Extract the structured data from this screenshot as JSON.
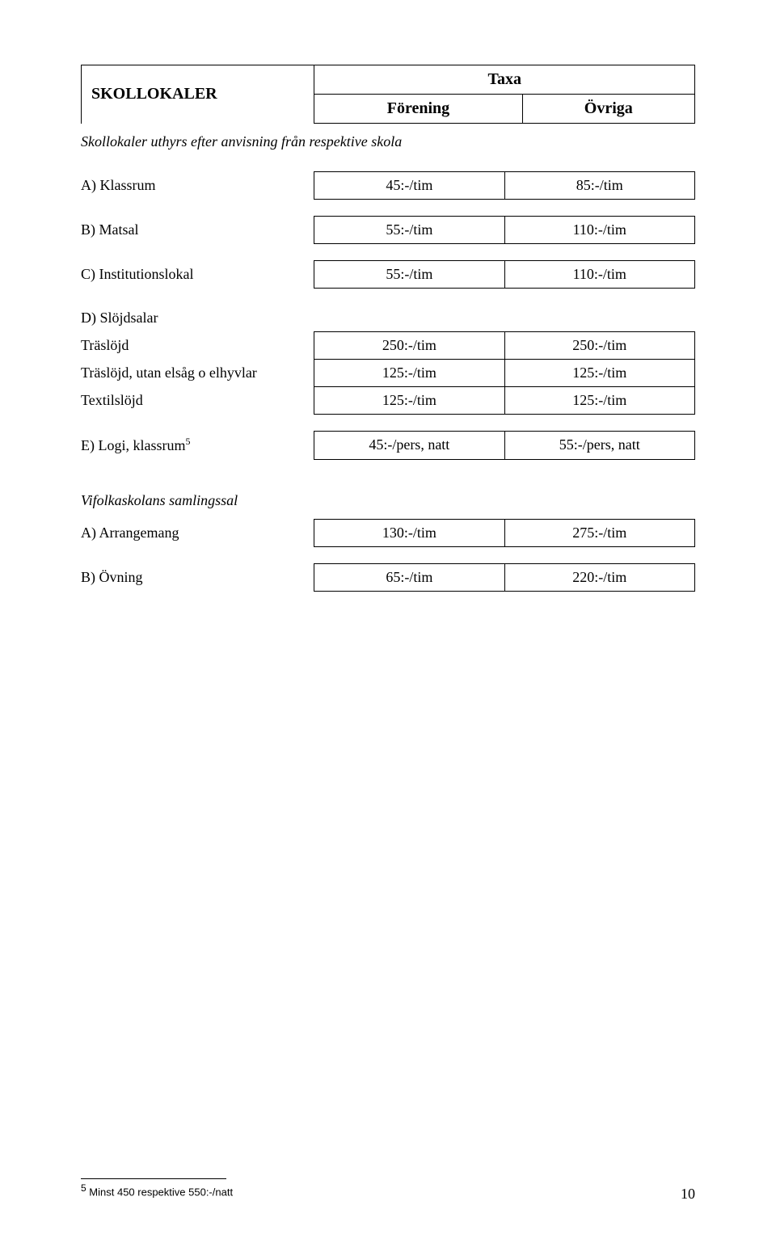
{
  "header": {
    "title": "SKOLLOKALER",
    "taxa": "Taxa",
    "forening": "Förening",
    "ovriga": "Övriga"
  },
  "intro": "Skollokaler uthyrs efter anvisning från respektive skola",
  "rows": {
    "klassrum": {
      "label": "A) Klassrum",
      "c1": "45:-/tim",
      "c2": "85:-/tim"
    },
    "matsal": {
      "label": "B) Matsal",
      "c1": "55:-/tim",
      "c2": "110:-/tim"
    },
    "inst": {
      "label": "C) Institutionslokal",
      "c1": "55:-/tim",
      "c2": "110:-/tim"
    },
    "slojd_head": "D) Slöjdsalar",
    "traslojd": {
      "label": "Träslöjd",
      "c1": "250:-/tim",
      "c2": "250:-/tim"
    },
    "traslojd2": {
      "label": "Träslöjd, utan elsåg o elhyvlar",
      "c1": "125:-/tim",
      "c2": "125:-/tim"
    },
    "textil": {
      "label": "Textilslöjd",
      "c1": "125:-/tim",
      "c2": "125:-/tim"
    },
    "logi": {
      "label": "E) Logi, klassrum",
      "sup": "5",
      "c1": "45:-/pers, natt",
      "c2": "55:-/pers, natt"
    },
    "vifolk_head": "Vifolkaskolans samlingssal",
    "arr": {
      "label": "A) Arrangemang",
      "c1": "130:-/tim",
      "c2": "275:-/tim"
    },
    "ovn": {
      "label": "B) Övning",
      "c1": "65:-/tim",
      "c2": "220:-/tim"
    }
  },
  "footnote": {
    "num": "5",
    "text": " Minst 450 respektive 550:-/natt"
  },
  "pagenum": "10"
}
